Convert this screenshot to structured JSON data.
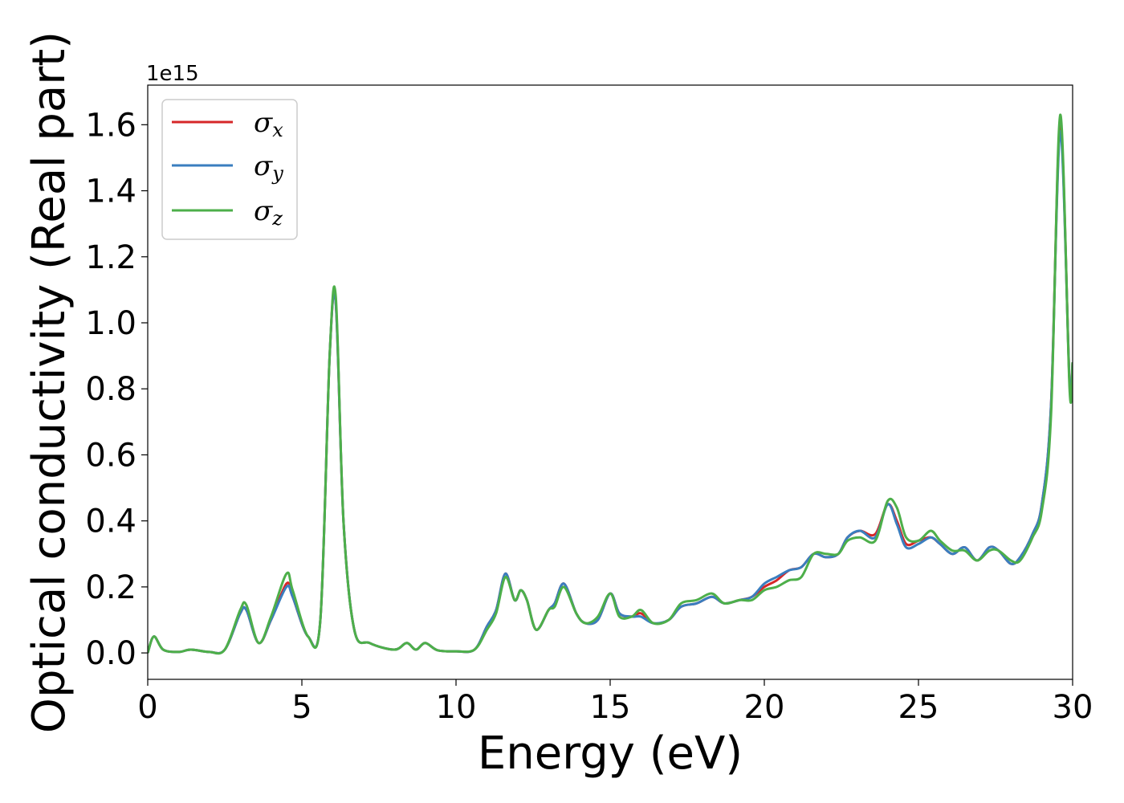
{
  "chart_data": {
    "type": "line",
    "title": "",
    "xlabel": "Energy (eV)",
    "ylabel": "Optical conductivity (Real part)",
    "y_offset_text": "1e15",
    "xlim": [
      0,
      30
    ],
    "ylim": [
      -0.08,
      1.72
    ],
    "x_ticks": [
      0,
      5,
      10,
      15,
      20,
      25,
      30
    ],
    "x_tick_labels": [
      "0",
      "5",
      "10",
      "15",
      "20",
      "25",
      "30"
    ],
    "y_ticks": [
      0.0,
      0.2,
      0.4,
      0.6,
      0.8,
      1.0,
      1.2,
      1.4,
      1.6
    ],
    "y_tick_labels": [
      "0.0",
      "0.2",
      "0.4",
      "0.6",
      "0.8",
      "1.0",
      "1.2",
      "1.4",
      "1.6"
    ],
    "grid": false,
    "legend_position": "top-left",
    "x": [
      0,
      0.2,
      0.5,
      1.0,
      1.4,
      2.0,
      2.5,
      3.0,
      3.2,
      3.6,
      4.0,
      4.5,
      4.7,
      5.2,
      5.6,
      5.9,
      6.1,
      6.35,
      6.7,
      7.2,
      8.0,
      8.4,
      8.7,
      9.0,
      9.4,
      10.0,
      10.6,
      11.0,
      11.3,
      11.6,
      11.9,
      12.1,
      12.3,
      12.6,
      13.0,
      13.2,
      13.5,
      13.9,
      14.2,
      14.6,
      15.0,
      15.3,
      15.7,
      16.0,
      16.4,
      16.9,
      17.3,
      17.8,
      18.3,
      18.7,
      19.2,
      19.6,
      20.0,
      20.4,
      20.8,
      21.2,
      21.6,
      22.0,
      22.4,
      22.7,
      23.1,
      23.6,
      24.0,
      24.3,
      24.6,
      25.0,
      25.4,
      25.7,
      26.1,
      26.5,
      26.9,
      27.3,
      27.6,
      28.0,
      28.3,
      28.7,
      29.0,
      29.3,
      29.6,
      29.9,
      30.0
    ],
    "series": [
      {
        "name": "σx",
        "color": "#d62728",
        "values": [
          0.0,
          0.05,
          0.01,
          0.003,
          0.01,
          0.003,
          0.01,
          0.12,
          0.13,
          0.03,
          0.1,
          0.21,
          0.17,
          0.05,
          0.1,
          0.9,
          1.06,
          0.4,
          0.07,
          0.03,
          0.01,
          0.03,
          0.01,
          0.03,
          0.008,
          0.005,
          0.01,
          0.08,
          0.13,
          0.24,
          0.16,
          0.19,
          0.16,
          0.07,
          0.13,
          0.15,
          0.21,
          0.12,
          0.09,
          0.1,
          0.18,
          0.12,
          0.11,
          0.12,
          0.09,
          0.1,
          0.14,
          0.15,
          0.17,
          0.15,
          0.16,
          0.17,
          0.2,
          0.22,
          0.25,
          0.26,
          0.3,
          0.29,
          0.3,
          0.35,
          0.37,
          0.36,
          0.45,
          0.4,
          0.33,
          0.34,
          0.35,
          0.33,
          0.3,
          0.32,
          0.28,
          0.32,
          0.31,
          0.27,
          0.29,
          0.36,
          0.45,
          0.75,
          1.6,
          0.82,
          0.88
        ]
      },
      {
        "name": "σy",
        "color": "#3a7ebf",
        "values": [
          0.0,
          0.05,
          0.01,
          0.003,
          0.01,
          0.003,
          0.01,
          0.12,
          0.13,
          0.03,
          0.1,
          0.2,
          0.17,
          0.05,
          0.1,
          0.9,
          1.06,
          0.4,
          0.07,
          0.03,
          0.01,
          0.03,
          0.01,
          0.03,
          0.008,
          0.005,
          0.01,
          0.08,
          0.13,
          0.24,
          0.16,
          0.19,
          0.16,
          0.07,
          0.13,
          0.15,
          0.21,
          0.12,
          0.09,
          0.1,
          0.18,
          0.12,
          0.11,
          0.11,
          0.09,
          0.1,
          0.14,
          0.15,
          0.17,
          0.15,
          0.16,
          0.17,
          0.21,
          0.23,
          0.25,
          0.26,
          0.3,
          0.29,
          0.3,
          0.35,
          0.37,
          0.35,
          0.45,
          0.39,
          0.32,
          0.33,
          0.35,
          0.33,
          0.3,
          0.32,
          0.28,
          0.32,
          0.31,
          0.27,
          0.29,
          0.36,
          0.45,
          0.75,
          1.58,
          0.82,
          0.88
        ]
      },
      {
        "name": "σz",
        "color": "#4daf4a",
        "values": [
          0.0,
          0.05,
          0.01,
          0.003,
          0.01,
          0.003,
          0.01,
          0.13,
          0.145,
          0.03,
          0.11,
          0.24,
          0.19,
          0.05,
          0.1,
          0.9,
          1.08,
          0.4,
          0.07,
          0.03,
          0.01,
          0.03,
          0.01,
          0.03,
          0.008,
          0.005,
          0.01,
          0.07,
          0.12,
          0.23,
          0.16,
          0.19,
          0.16,
          0.07,
          0.13,
          0.14,
          0.2,
          0.12,
          0.09,
          0.11,
          0.18,
          0.11,
          0.11,
          0.13,
          0.09,
          0.1,
          0.15,
          0.16,
          0.18,
          0.15,
          0.16,
          0.16,
          0.19,
          0.2,
          0.22,
          0.23,
          0.3,
          0.3,
          0.3,
          0.34,
          0.35,
          0.34,
          0.46,
          0.44,
          0.35,
          0.34,
          0.37,
          0.34,
          0.31,
          0.31,
          0.28,
          0.31,
          0.31,
          0.28,
          0.28,
          0.35,
          0.43,
          0.72,
          1.63,
          0.8,
          0.88
        ]
      }
    ]
  },
  "legend": [
    {
      "base": "σ",
      "sub": "x"
    },
    {
      "base": "σ",
      "sub": "y"
    },
    {
      "base": "σ",
      "sub": "z"
    }
  ]
}
